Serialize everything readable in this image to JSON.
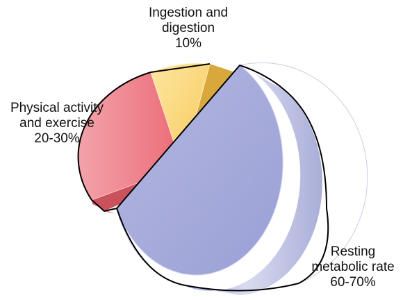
{
  "chart_data": {
    "type": "pie",
    "title": "",
    "slices": [
      {
        "label_lines": [
          "Ingestion and",
          "digestion",
          "10%"
        ],
        "value": 10,
        "color": "#fcd77a",
        "side_color": "#d8a83c"
      },
      {
        "label_lines": [
          "Physical activity",
          "and exercise",
          "20-30%"
        ],
        "value": 25,
        "color": "#ef7f88",
        "side_color": "#c9525d"
      },
      {
        "label_lines": [
          "Resting",
          "metabolic rate",
          "60-70%"
        ],
        "value": 65,
        "color": "#a6acdc",
        "side_color": "#c4c8e8",
        "exploded": true
      }
    ]
  }
}
